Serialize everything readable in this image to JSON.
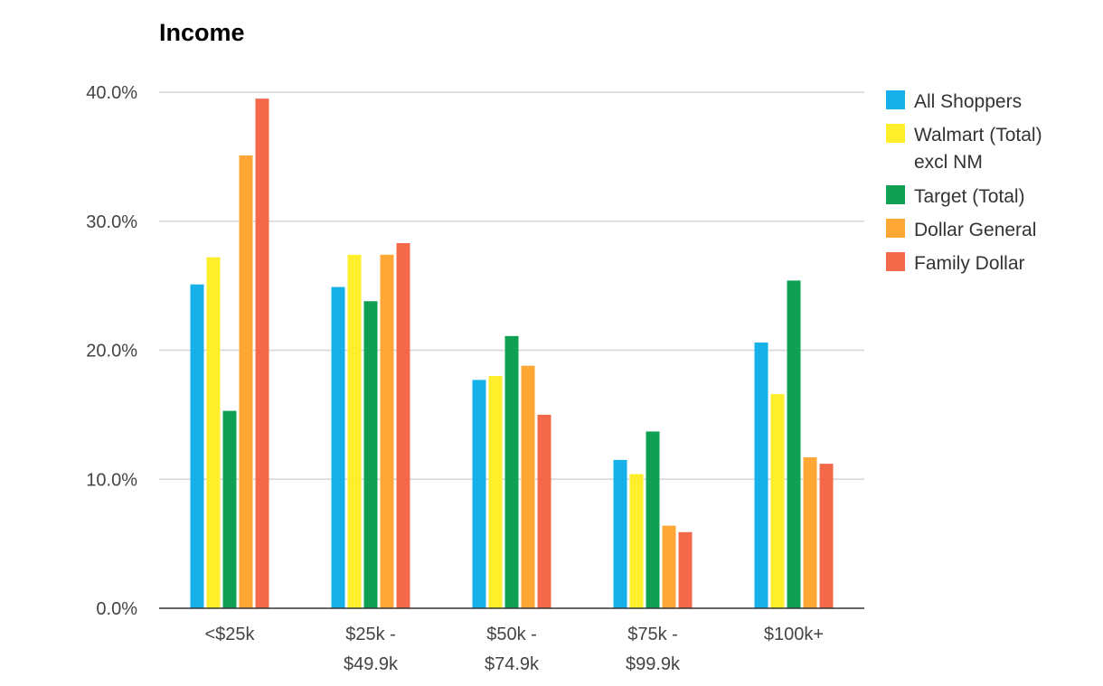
{
  "chart_data": {
    "type": "bar",
    "title": "Income",
    "xlabel": "",
    "ylabel": "",
    "ylim": [
      0,
      40
    ],
    "yticks": [
      "0.0%",
      "10.0%",
      "20.0%",
      "30.0%",
      "40.0%"
    ],
    "grid": true,
    "legend_position": "right",
    "categories": [
      [
        "<$25k"
      ],
      [
        "$25k -",
        "$49.9k"
      ],
      [
        "$50k -",
        "$74.9k"
      ],
      [
        "$75k -",
        "$99.9k"
      ],
      [
        "$100k+"
      ]
    ],
    "series": [
      {
        "name": [
          "All Shoppers"
        ],
        "color": "#16b1e8",
        "values": [
          25.1,
          24.9,
          17.7,
          11.5,
          20.6
        ]
      },
      {
        "name": [
          "Walmart (Total)",
          "excl NM"
        ],
        "color": "#ffee2a",
        "values": [
          27.2,
          27.4,
          18.0,
          10.4,
          16.6
        ]
      },
      {
        "name": [
          "Target (Total)"
        ],
        "color": "#0fa054",
        "values": [
          15.3,
          23.8,
          21.1,
          13.7,
          25.4
        ]
      },
      {
        "name": [
          "Dollar General"
        ],
        "color": "#fea735",
        "values": [
          35.1,
          27.4,
          18.8,
          6.4,
          11.7
        ]
      },
      {
        "name": [
          "Family Dollar"
        ],
        "color": "#f4694a",
        "values": [
          39.5,
          28.3,
          15.0,
          5.9,
          11.2
        ]
      }
    ]
  }
}
